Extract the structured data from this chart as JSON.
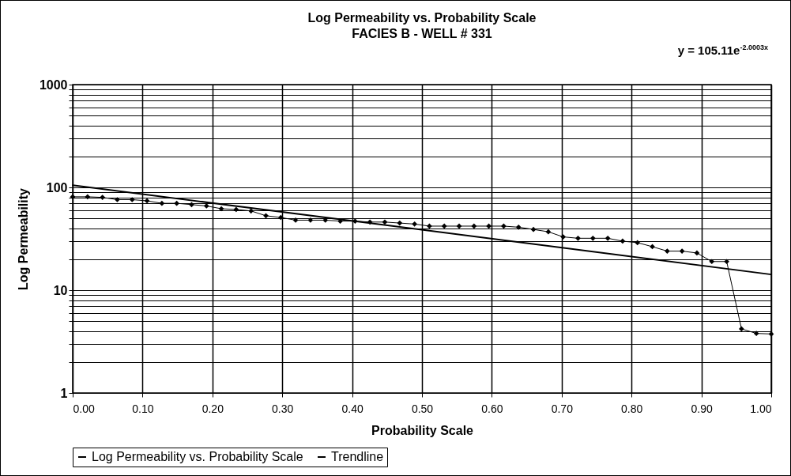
{
  "chart_data": {
    "type": "line",
    "title": "Log Permeability vs. Probability Scale",
    "subtitle": "FACIES B - WELL # 331",
    "xlabel": "Probability Scale",
    "ylabel": "Log Permeability",
    "annotations": [
      "y = 105.11e$^{-2.0003x}$"
    ],
    "log": "y",
    "grid": true,
    "legend": "bottom",
    "xlim": [
      0,
      1
    ],
    "ylim": [
      1,
      1000
    ],
    "xticks": [
      {
        "value": 0,
        "label": "0.00"
      },
      {
        "value": 0.1,
        "label": "0.10"
      },
      {
        "value": 0.2,
        "label": "0.20"
      },
      {
        "value": 0.3,
        "label": "0.30"
      },
      {
        "value": 0.4,
        "label": "0.40"
      },
      {
        "value": 0.5,
        "label": "0.50"
      },
      {
        "value": 0.6,
        "label": "0.60"
      },
      {
        "value": 0.7,
        "label": "0.70"
      },
      {
        "value": 0.8,
        "label": "0.80"
      },
      {
        "value": 0.9,
        "label": "0.90"
      },
      {
        "value": 1,
        "label": "1.00"
      }
    ],
    "yticks": [
      1,
      {
        "value": 2,
        "label": null
      },
      {
        "value": 3,
        "label": null
      },
      {
        "value": 4,
        "label": null
      },
      {
        "value": 5,
        "label": null
      },
      {
        "value": 6,
        "label": null
      },
      {
        "value": 7,
        "label": null
      },
      {
        "value": 8,
        "label": null
      },
      {
        "value": 9,
        "label": null
      },
      10,
      {
        "value": 20,
        "label": null
      },
      {
        "value": 30,
        "label": null
      },
      {
        "value": 40,
        "label": null
      },
      {
        "value": 50,
        "label": null
      },
      {
        "value": 60,
        "label": null
      },
      {
        "value": 70,
        "label": null
      },
      {
        "value": 80,
        "label": null
      },
      {
        "value": 90,
        "label": null
      },
      100,
      {
        "value": 200,
        "label": null
      },
      {
        "value": 300,
        "label": null
      },
      {
        "value": 400,
        "label": null
      },
      {
        "value": 500,
        "label": null
      },
      {
        "value": 600,
        "label": null
      },
      {
        "value": 700,
        "label": null
      },
      {
        "value": 800,
        "label": null
      },
      {
        "value": 900,
        "label": null
      },
      1000
    ],
    "series": [
      {
        "name": "Log Permeability vs. Probability Scale",
        "color": "#000000",
        "marker": "diamond",
        "x": [
          0,
          0.0213,
          0.0426,
          0.0638,
          0.0851,
          0.1064,
          0.1277,
          0.1489,
          0.1702,
          0.1915,
          0.2128,
          0.234,
          0.2553,
          0.2766,
          0.2979,
          0.3191,
          0.3404,
          0.3617,
          0.383,
          0.4043,
          0.4255,
          0.4468,
          0.4681,
          0.4894,
          0.5106,
          0.5319,
          0.5532,
          0.5745,
          0.5957,
          0.617,
          0.6383,
          0.6596,
          0.6809,
          0.7021,
          0.7234,
          0.7447,
          0.766,
          0.7872,
          0.8085,
          0.8298,
          0.8511,
          0.8723,
          0.8936,
          0.9149,
          0.9362,
          0.9574,
          0.9787,
          1
        ],
        "values": [
          81,
          81,
          80,
          76,
          76,
          74,
          70,
          70,
          68,
          66,
          62,
          61,
          59,
          53,
          51,
          48,
          48,
          48,
          47,
          47,
          46,
          46,
          45,
          44,
          42,
          42,
          42,
          42,
          42,
          42,
          41,
          39,
          37,
          33,
          32,
          32,
          32,
          30,
          29,
          26.5,
          24,
          24,
          23,
          19,
          19,
          4.2,
          3.8,
          3.75
        ]
      },
      {
        "name": "Trendline",
        "color": "#000000",
        "marker": "none",
        "x": [
          0,
          1
        ],
        "values": [
          105.11,
          14.22
        ]
      }
    ]
  }
}
